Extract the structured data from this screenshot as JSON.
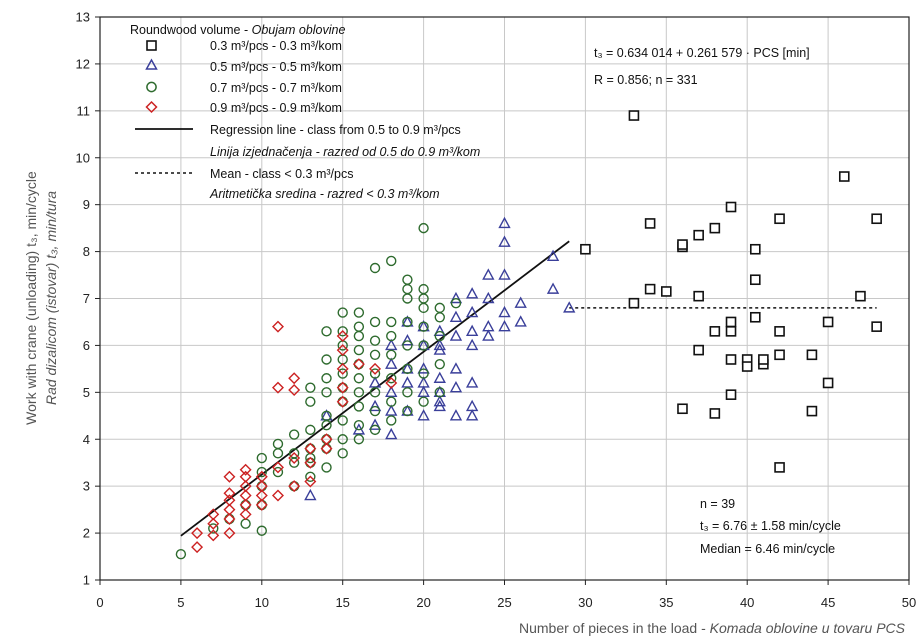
{
  "chart_data": {
    "type": "scatter",
    "xlabel": "Number of pieces in the load - ",
    "xlabel_italic": "Komada oblovine u tovaru PCS",
    "ylabel_main": "Work with crane (unloading) t₃, min/cycle",
    "ylabel_alt": "Rad dizalicom (istovar) t₃, min/tura",
    "xlim": [
      0,
      50
    ],
    "ylim": [
      1,
      13
    ],
    "x_ticks": [
      "0",
      "5",
      "10",
      "15",
      "20",
      "25",
      "30",
      "35",
      "40",
      "45",
      "50"
    ],
    "y_ticks": [
      "1",
      "2",
      "3",
      "4",
      "5",
      "6",
      "7",
      "8",
      "9",
      "10",
      "11",
      "12",
      "13"
    ],
    "grid": true,
    "legend_position": "top-left",
    "legend": {
      "title": "Roundwood volume - ",
      "title_italic": "Obujam oblovine",
      "items": [
        {
          "marker": "square",
          "color": "#111111",
          "label": "0.3 m³/pcs - 0.3 m³/kom"
        },
        {
          "marker": "triangle",
          "color": "#3a3f9a",
          "label": "0.5 m³/pcs - 0.5 m³/kom"
        },
        {
          "marker": "circle",
          "color": "#2e6b2e",
          "label": "0.7 m³/pcs - 0.7 m³/kom"
        },
        {
          "marker": "diamond",
          "color": "#cc2222",
          "label": "0.9 m³/pcs - 0.9 m³/kom"
        },
        {
          "marker": "solid-line",
          "color": "#111111",
          "label": "Regression line - class from 0.5 to 0.9 m³/pcs",
          "label2": "Linija izjednačenja - razred od 0.5 do 0.9 m³/kom"
        },
        {
          "marker": "dashed-line",
          "color": "#111111",
          "label": "Mean - class < 0.3 m³/pcs",
          "label2": "Aritmetička sredina - razred < 0.3 m³/kom"
        }
      ]
    },
    "annotations": {
      "equation": "t₃ = 0.634 014 + 0.261 579 · PCS [min]",
      "stats_top": "R = 0.856;  n = 331",
      "n_bottom": "n = 39",
      "mean_bottom": "t₃ = 6.76 ± 1.58 min/cycle",
      "median_bottom": "Median = 6.46 min/cycle"
    },
    "regression": {
      "intercept": 0.634014,
      "slope": 0.261579,
      "x_from": 5,
      "x_to": 29
    },
    "mean_line": {
      "y": 6.8,
      "x_from": 29,
      "x_to": 48
    },
    "series": [
      {
        "name": "0.3 m³/pcs - 0.3 m³/kom",
        "marker": "square",
        "color": "#111111",
        "points": [
          [
            33,
            10.9
          ],
          [
            30,
            8.05
          ],
          [
            34,
            8.6
          ],
          [
            36,
            8.1
          ],
          [
            37,
            8.35
          ],
          [
            38,
            8.5
          ],
          [
            39,
            8.95
          ],
          [
            40.5,
            8.05
          ],
          [
            42,
            8.7
          ],
          [
            46,
            9.6
          ],
          [
            48,
            8.7
          ],
          [
            34,
            7.2
          ],
          [
            35,
            7.15
          ],
          [
            37,
            7.05
          ],
          [
            33,
            6.9
          ],
          [
            40.5,
            7.4
          ],
          [
            47,
            7.05
          ],
          [
            39,
            6.5
          ],
          [
            39,
            6.3
          ],
          [
            38,
            6.3
          ],
          [
            40.5,
            6.6
          ],
          [
            42,
            6.3
          ],
          [
            45,
            6.5
          ],
          [
            48,
            6.4
          ],
          [
            37,
            5.9
          ],
          [
            39,
            5.7
          ],
          [
            40,
            5.7
          ],
          [
            40,
            5.55
          ],
          [
            41,
            5.6
          ],
          [
            41,
            5.7
          ],
          [
            42,
            5.8
          ],
          [
            44,
            5.8
          ],
          [
            45,
            5.2
          ],
          [
            39,
            4.95
          ],
          [
            36,
            4.65
          ],
          [
            38,
            4.55
          ],
          [
            44,
            4.6
          ],
          [
            42,
            3.4
          ],
          [
            36,
            8.15
          ]
        ]
      },
      {
        "name": "0.5 m³/pcs - 0.5 m³/kom",
        "marker": "triangle",
        "color": "#3a3f9a",
        "points": [
          [
            13,
            2.8
          ],
          [
            14,
            4.5
          ],
          [
            16,
            4.2
          ],
          [
            17,
            4.3
          ],
          [
            18,
            4.1
          ],
          [
            17,
            4.7
          ],
          [
            18,
            4.6
          ],
          [
            19,
            4.6
          ],
          [
            18,
            5.0
          ],
          [
            19,
            5.2
          ],
          [
            20,
            5.0
          ],
          [
            20,
            5.2
          ],
          [
            21,
            5.0
          ],
          [
            21,
            4.8
          ],
          [
            20,
            4.5
          ],
          [
            22,
            4.5
          ],
          [
            23,
            4.5
          ],
          [
            22,
            5.1
          ],
          [
            23,
            5.2
          ],
          [
            23,
            4.7
          ],
          [
            21,
            4.7
          ],
          [
            17,
            5.2
          ],
          [
            18,
            5.6
          ],
          [
            19,
            5.5
          ],
          [
            20,
            5.5
          ],
          [
            21,
            5.3
          ],
          [
            20,
            6.0
          ],
          [
            21,
            5.9
          ],
          [
            22,
            6.2
          ],
          [
            23,
            6.3
          ],
          [
            21,
            6.3
          ],
          [
            20,
            6.4
          ],
          [
            19,
            6.5
          ],
          [
            19,
            6.1
          ],
          [
            18,
            6.0
          ],
          [
            22,
            6.6
          ],
          [
            23,
            6.7
          ],
          [
            22,
            7.0
          ],
          [
            23,
            7.1
          ],
          [
            24,
            7.0
          ],
          [
            24,
            7.5
          ],
          [
            25,
            7.5
          ],
          [
            24,
            6.4
          ],
          [
            25,
            6.4
          ],
          [
            25,
            6.7
          ],
          [
            26,
            6.9
          ],
          [
            26,
            6.5
          ],
          [
            24,
            6.2
          ],
          [
            25,
            8.2
          ],
          [
            25,
            8.6
          ],
          [
            28,
            7.9
          ],
          [
            28,
            7.2
          ],
          [
            29,
            6.8
          ],
          [
            23,
            6.0
          ],
          [
            22,
            5.5
          ],
          [
            21,
            6.0
          ]
        ]
      },
      {
        "name": "0.7 m³/pcs - 0.7 m³/kom",
        "marker": "circle",
        "color": "#2e6b2e",
        "points": [
          [
            5,
            1.55
          ],
          [
            7,
            2.1
          ],
          [
            8,
            2.3
          ],
          [
            9,
            2.2
          ],
          [
            10,
            2.05
          ],
          [
            9,
            2.6
          ],
          [
            10,
            2.6
          ],
          [
            10,
            3.0
          ],
          [
            10,
            3.3
          ],
          [
            10,
            3.6
          ],
          [
            11,
            3.3
          ],
          [
            11,
            3.7
          ],
          [
            11,
            3.9
          ],
          [
            12,
            3.0
          ],
          [
            12,
            3.5
          ],
          [
            12,
            3.7
          ],
          [
            12,
            4.1
          ],
          [
            13,
            3.2
          ],
          [
            13,
            3.5
          ],
          [
            13,
            3.8
          ],
          [
            13,
            4.2
          ],
          [
            13,
            4.8
          ],
          [
            13,
            5.1
          ],
          [
            14,
            3.4
          ],
          [
            14,
            3.8
          ],
          [
            14,
            4.0
          ],
          [
            14,
            4.5
          ],
          [
            14,
            5.0
          ],
          [
            14,
            5.3
          ],
          [
            14,
            5.7
          ],
          [
            14,
            6.3
          ],
          [
            15,
            3.7
          ],
          [
            15,
            4.0
          ],
          [
            15,
            4.4
          ],
          [
            15,
            4.8
          ],
          [
            15,
            5.1
          ],
          [
            15,
            5.4
          ],
          [
            15,
            5.7
          ],
          [
            15,
            6.0
          ],
          [
            15,
            6.3
          ],
          [
            15,
            6.7
          ],
          [
            16,
            4.0
          ],
          [
            16,
            4.3
          ],
          [
            16,
            4.7
          ],
          [
            16,
            5.0
          ],
          [
            16,
            5.3
          ],
          [
            16,
            5.6
          ],
          [
            16,
            5.9
          ],
          [
            16,
            6.2
          ],
          [
            16,
            6.4
          ],
          [
            17,
            4.2
          ],
          [
            17,
            4.6
          ],
          [
            17,
            5.0
          ],
          [
            17,
            5.4
          ],
          [
            17,
            5.8
          ],
          [
            17,
            6.1
          ],
          [
            17,
            6.5
          ],
          [
            17,
            7.65
          ],
          [
            18,
            4.4
          ],
          [
            18,
            4.8
          ],
          [
            18,
            5.3
          ],
          [
            18,
            5.8
          ],
          [
            18,
            6.2
          ],
          [
            18,
            6.5
          ],
          [
            18,
            7.8
          ],
          [
            19,
            4.6
          ],
          [
            19,
            5.0
          ],
          [
            19,
            5.5
          ],
          [
            19,
            6.0
          ],
          [
            19,
            6.5
          ],
          [
            19,
            7.0
          ],
          [
            19,
            7.2
          ],
          [
            19,
            7.4
          ],
          [
            20,
            4.8
          ],
          [
            20,
            5.4
          ],
          [
            20,
            6.0
          ],
          [
            20,
            6.4
          ],
          [
            20,
            6.8
          ],
          [
            20,
            7.0
          ],
          [
            20,
            7.2
          ],
          [
            20,
            8.5
          ],
          [
            21,
            5.0
          ],
          [
            21,
            5.6
          ],
          [
            21,
            6.2
          ],
          [
            21,
            6.6
          ],
          [
            21,
            6.8
          ],
          [
            22,
            6.9
          ],
          [
            16,
            6.7
          ],
          [
            14,
            4.3
          ],
          [
            13,
            3.6
          ]
        ]
      },
      {
        "name": "0.9 m³/pcs - 0.9 m³/kom",
        "marker": "diamond",
        "color": "#cc2222",
        "points": [
          [
            6,
            1.7
          ],
          [
            6,
            2.0
          ],
          [
            7,
            1.95
          ],
          [
            7,
            2.2
          ],
          [
            7,
            2.4
          ],
          [
            8,
            2.0
          ],
          [
            8,
            2.3
          ],
          [
            8,
            2.5
          ],
          [
            8,
            2.7
          ],
          [
            8,
            2.85
          ],
          [
            8,
            3.2
          ],
          [
            9,
            2.4
          ],
          [
            9,
            2.6
          ],
          [
            9,
            2.8
          ],
          [
            9,
            3.0
          ],
          [
            9,
            3.2
          ],
          [
            9,
            3.35
          ],
          [
            10,
            2.6
          ],
          [
            10,
            2.8
          ],
          [
            10,
            3.0
          ],
          [
            10,
            3.2
          ],
          [
            11,
            2.8
          ],
          [
            11,
            3.4
          ],
          [
            11,
            5.1
          ],
          [
            11,
            6.4
          ],
          [
            12,
            3.0
          ],
          [
            12,
            3.6
          ],
          [
            12,
            5.05
          ],
          [
            12,
            5.3
          ],
          [
            13,
            3.1
          ],
          [
            13,
            3.5
          ],
          [
            13,
            3.8
          ],
          [
            14,
            3.8
          ],
          [
            14,
            4.0
          ],
          [
            15,
            4.8
          ],
          [
            15,
            5.1
          ],
          [
            15,
            5.5
          ],
          [
            15,
            5.9
          ],
          [
            15,
            6.2
          ],
          [
            16,
            5.6
          ],
          [
            17,
            5.5
          ],
          [
            18,
            5.2
          ]
        ]
      }
    ]
  }
}
